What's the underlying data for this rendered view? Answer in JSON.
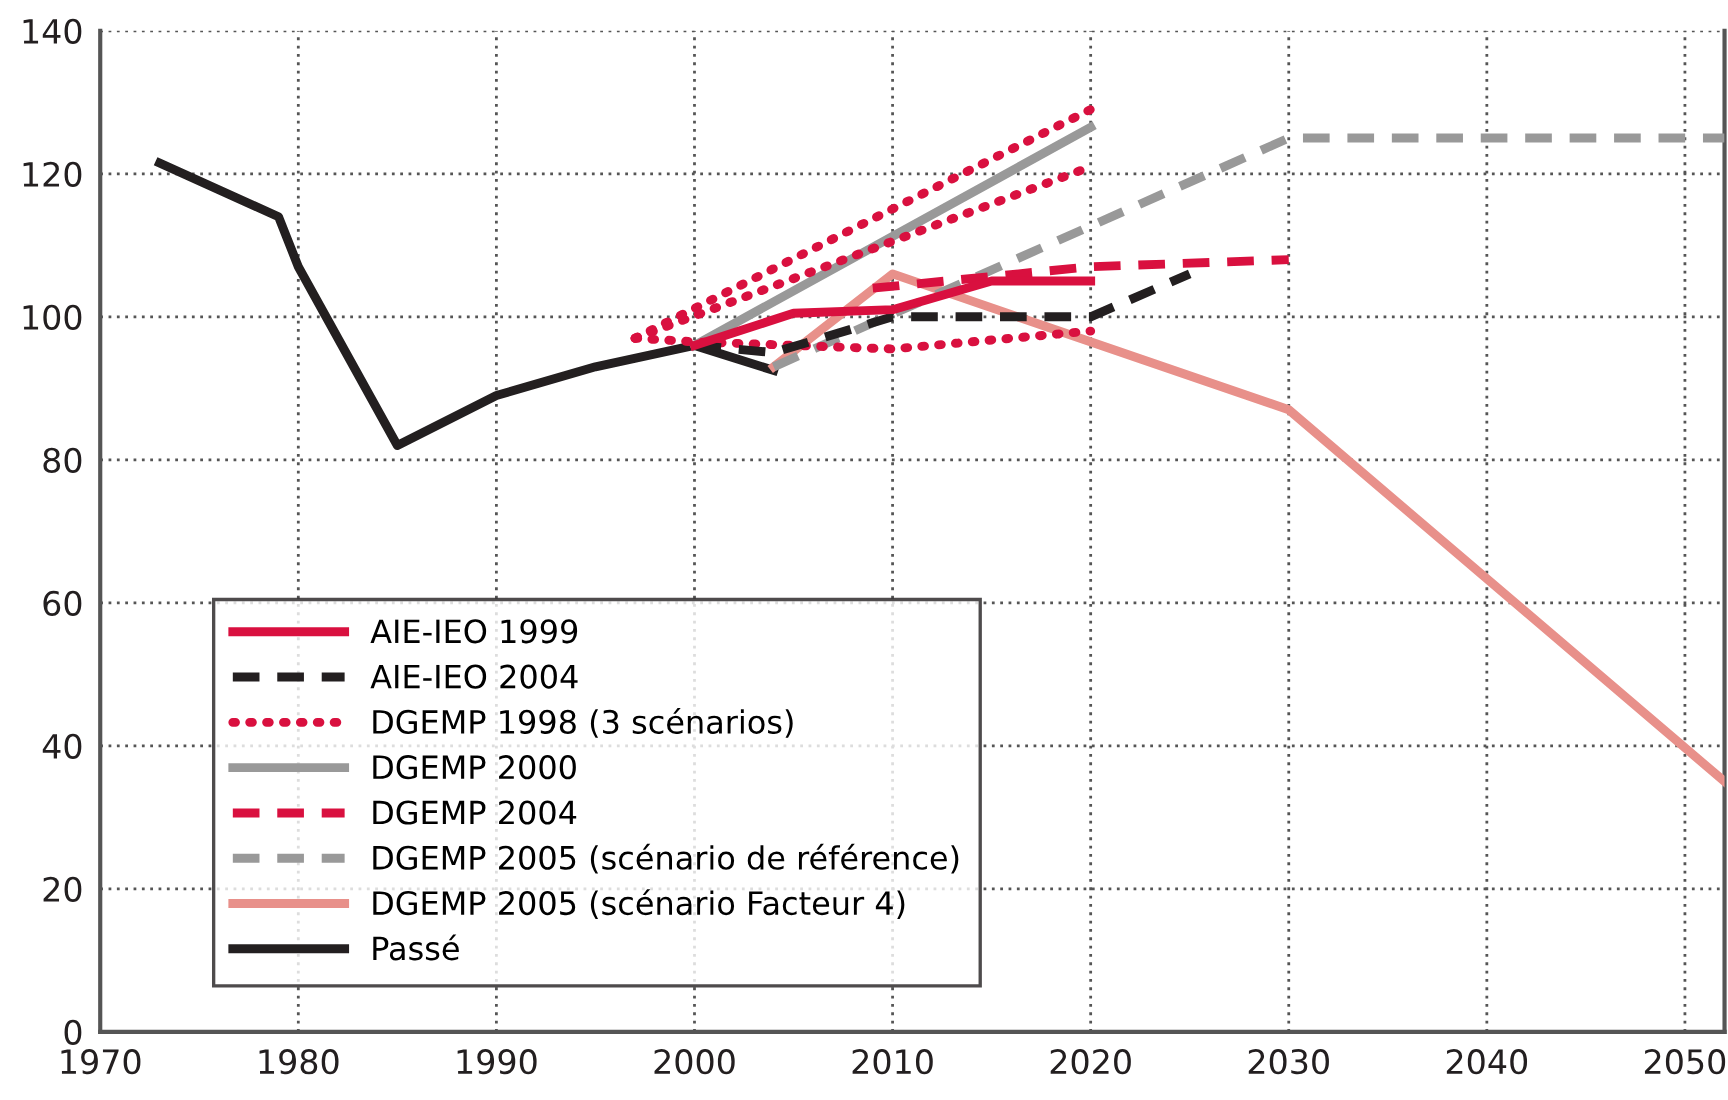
{
  "chart_data": {
    "type": "line",
    "xlim": [
      1970,
      2052
    ],
    "ylim": [
      0,
      140
    ],
    "xticks": [
      1970,
      1980,
      1990,
      2000,
      2010,
      2020,
      2030,
      2040,
      2050
    ],
    "yticks": [
      0,
      20,
      40,
      60,
      80,
      100,
      120,
      140
    ],
    "grid": true,
    "legend": "bottom left",
    "marker": "none",
    "series": [
      {
        "name": "AIE-IEO 1999",
        "color": "#d9103f",
        "line_style": "solid",
        "x": [
          2000,
          2005,
          2010,
          2015,
          2020
        ],
        "values": [
          96,
          100.5,
          101,
          105,
          105
        ]
      },
      {
        "name": "AIE-IEO 2004",
        "color": "#231f20",
        "line_style": "dashed",
        "x": [
          2000,
          2004,
          2010,
          2020,
          2025
        ],
        "values": [
          96,
          95,
          100,
          100,
          106
        ]
      },
      {
        "name": "DGEMP 1998 (3 scénarios)",
        "color": "#d9103f",
        "line_style": "dotted",
        "x": [
          1997,
          2020
        ],
        "values": [
          97,
          129
        ]
      },
      {
        "color": "#d9103f",
        "line_style": "dotted",
        "x": [
          1997,
          2020
        ],
        "values": [
          97,
          121
        ]
      },
      {
        "color": "#d9103f",
        "line_style": "dotted",
        "x": [
          1997,
          2000,
          2010,
          2020
        ],
        "values": [
          97,
          96.5,
          95.5,
          98
        ]
      },
      {
        "name": "DGEMP 2000",
        "color": "#999999",
        "line_style": "solid",
        "x": [
          2000,
          2020
        ],
        "values": [
          96,
          126.5
        ]
      },
      {
        "name": "DGEMP 2004",
        "color": "#d9103f",
        "line_style": "dashed",
        "x": [
          2009,
          2020,
          2030
        ],
        "values": [
          104,
          107,
          108
        ]
      },
      {
        "name": "DGEMP 2005 (scénario de référence)",
        "color": "#999999",
        "line_style": "dashed",
        "x": [
          2004,
          2030,
          2052
        ],
        "values": [
          93,
          125,
          125
        ]
      },
      {
        "name": "DGEMP 2005 (scénario Facteur 4)",
        "color": "#e8908a",
        "line_style": "solid",
        "x": [
          2004,
          2010,
          2030,
          2052
        ],
        "values": [
          93,
          106,
          87,
          35
        ]
      },
      {
        "name": "Passé",
        "color": "#231f20",
        "line_style": "solid",
        "x": [
          1973,
          1979,
          1980,
          1985,
          1990,
          1995,
          2000,
          2004
        ],
        "values": [
          121.5,
          114,
          107,
          82,
          89,
          93,
          96,
          92.5
        ]
      }
    ]
  }
}
